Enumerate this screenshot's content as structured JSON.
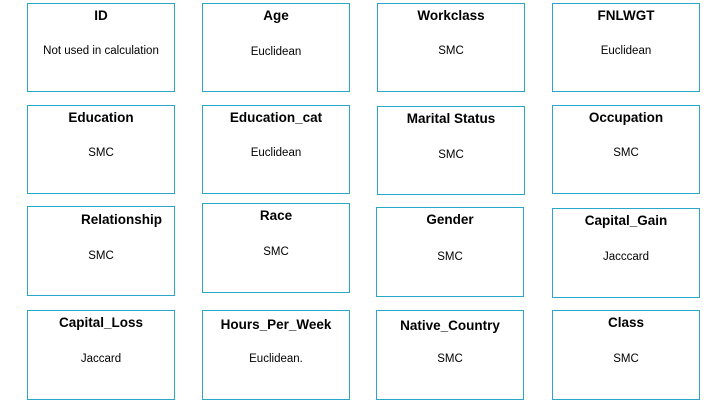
{
  "cards": [
    {
      "title": "ID",
      "value": "Not used in calculation"
    },
    {
      "title": "Age",
      "value": "Euclidean"
    },
    {
      "title": "Workclass",
      "value": "SMC"
    },
    {
      "title": "FNLWGT",
      "value": "Euclidean"
    },
    {
      "title": "Education",
      "value": "SMC"
    },
    {
      "title": "Education_cat",
      "value": "Euclidean"
    },
    {
      "title": "Marital Status",
      "value": "SMC"
    },
    {
      "title": "Occupation",
      "value": "SMC"
    },
    {
      "title": "Relationship",
      "value": "SMC"
    },
    {
      "title": "Race",
      "value": "SMC"
    },
    {
      "title": "Gender",
      "value": "SMC"
    },
    {
      "title": "Capital_Gain",
      "value": "Jacccard"
    },
    {
      "title": "Capital_Loss",
      "value": "Jaccard"
    },
    {
      "title": "Hours_Per_Week",
      "value": "Euclidean."
    },
    {
      "title": "Native_Country",
      "value": "SMC"
    },
    {
      "title": "Class",
      "value": "SMC"
    }
  ]
}
